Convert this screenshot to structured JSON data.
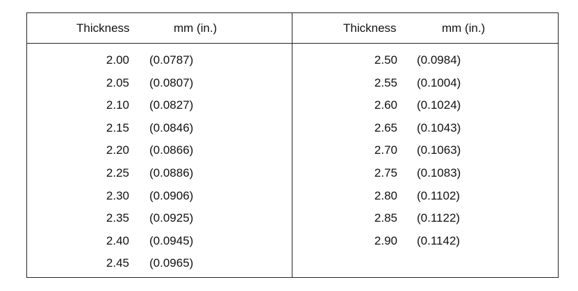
{
  "table": {
    "columns": [
      {
        "header": [
          "Thickness",
          "mm (in.)"
        ],
        "rows": [
          [
            "2.00",
            "(0.0787)"
          ],
          [
            "2.05",
            "(0.0807)"
          ],
          [
            "2.10",
            "(0.0827)"
          ],
          [
            "2.15",
            "(0.0846)"
          ],
          [
            "2.20",
            "(0.0866)"
          ],
          [
            "2.25",
            "(0.0886)"
          ],
          [
            "2.30",
            "(0.0906)"
          ],
          [
            "2.35",
            "(0.0925)"
          ],
          [
            "2.40",
            "(0.0945)"
          ],
          [
            "2.45",
            "(0.0965)"
          ]
        ]
      },
      {
        "header": [
          "Thickness",
          "mm (in.)"
        ],
        "rows": [
          [
            "2.50",
            "(0.0984)"
          ],
          [
            "2.55",
            "(0.1004)"
          ],
          [
            "2.60",
            "(0.1024)"
          ],
          [
            "2.65",
            "(0.1043)"
          ],
          [
            "2.70",
            "(0.1063)"
          ],
          [
            "2.75",
            "(0.1083)"
          ],
          [
            "2.80",
            "(0.1102)"
          ],
          [
            "2.85",
            "(0.1122)"
          ],
          [
            "2.90",
            "(0.1142)"
          ]
        ]
      }
    ]
  }
}
